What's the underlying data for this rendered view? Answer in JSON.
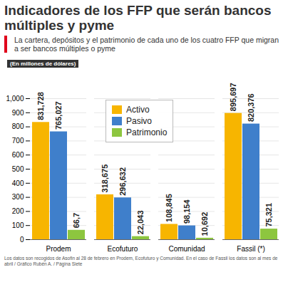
{
  "chart_data": {
    "type": "bar",
    "title": "Indicadores de los FFP que serán bancos múltiples y pyme",
    "subtitle": "La cartera, depósitos y el patrimonio de cada uno de los cuatro FFP que migran a ser bancos múltiples o pyme",
    "y_label": "(En millones de dólares)",
    "caption": "Los datos son recogidos de Asofin al 28 de febrero en Prodem, Ecofuturo y Comunidad. En el caso de Fassil los datos son al mes de abril / Gráfico Rubén A. / Página Siete",
    "categories": [
      "Prodem",
      "Ecofuturo",
      "Comunidad",
      "Fassil (*)"
    ],
    "series": [
      {
        "name": "Activo",
        "color": "#f7b500",
        "values": [
          831.728,
          318.675,
          108.845,
          895.697
        ],
        "value_labels": [
          "831,728",
          "318,675",
          "108,845",
          "895,697"
        ]
      },
      {
        "name": "Pasivo",
        "color": "#3f7fcb",
        "values": [
          765.027,
          296.632,
          98.154,
          820.376
        ],
        "value_labels": [
          "765,027",
          "296,632",
          "98,154",
          "820,376"
        ]
      },
      {
        "name": "Patrimonio",
        "color": "#8dc63f",
        "values": [
          66.7,
          22.043,
          10.692,
          75.321
        ],
        "value_labels": [
          "66,7",
          "22,043",
          "10,692",
          "75,321"
        ]
      }
    ],
    "ylim": [
      0,
      1000
    ],
    "yticks": [
      0,
      100,
      200,
      300,
      400,
      500,
      600,
      700,
      800,
      900,
      1000
    ],
    "grid": true,
    "legend": "top",
    "data_labels": true
  }
}
